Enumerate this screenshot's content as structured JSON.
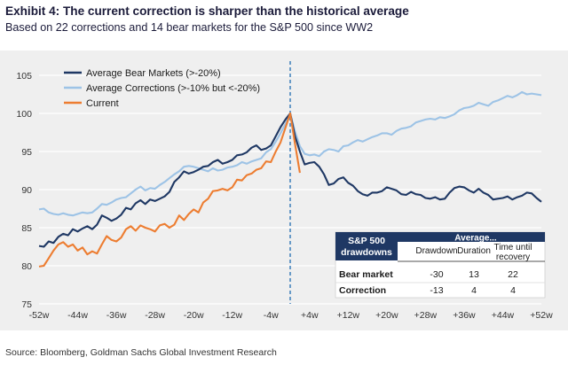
{
  "header": {
    "title": "Exhibit 4: The current correction is sharper than the historical average",
    "subtitle": "Based on 22 corrections and 14 bear markets for the S&P 500 since WW2"
  },
  "source": "Source: Bloomberg, Goldman Sachs Global Investment Research",
  "chart_data": {
    "type": "line",
    "x_tick_labels": [
      "-52w",
      "-44w",
      "-36w",
      "-28w",
      "-20w",
      "-12w",
      "-4w",
      "+4w",
      "+12w",
      "+20w",
      "+28w",
      "+36w",
      "+44w",
      "+52w"
    ],
    "x_tick_values": [
      -52,
      -44,
      -36,
      -28,
      -20,
      -12,
      -4,
      4,
      12,
      20,
      28,
      36,
      44,
      52
    ],
    "xlim": [
      -52,
      52
    ],
    "y_ticks": [
      75,
      80,
      85,
      90,
      95,
      100,
      105
    ],
    "ylim": [
      75,
      105
    ],
    "grid": "horizontal",
    "legend_position": "top-left",
    "peak_marker_x": 0,
    "series": [
      {
        "name": "Average Bear Markets (>-20%)",
        "color": "#1f3864",
        "points": [
          [
            -52,
            82.6
          ],
          [
            -51,
            82.5
          ],
          [
            -50,
            83.2
          ],
          [
            -49,
            83.0
          ],
          [
            -48,
            83.8
          ],
          [
            -47,
            84.2
          ],
          [
            -46,
            84.0
          ],
          [
            -45,
            84.8
          ],
          [
            -44,
            84.5
          ],
          [
            -43,
            84.9
          ],
          [
            -42,
            85.2
          ],
          [
            -41,
            84.8
          ],
          [
            -40,
            85.4
          ],
          [
            -39,
            86.6
          ],
          [
            -38,
            86.3
          ],
          [
            -37,
            85.9
          ],
          [
            -36,
            86.2
          ],
          [
            -35,
            86.7
          ],
          [
            -34,
            87.6
          ],
          [
            -33,
            87.4
          ],
          [
            -32,
            88.2
          ],
          [
            -31,
            88.6
          ],
          [
            -30,
            88.1
          ],
          [
            -29,
            88.7
          ],
          [
            -28,
            88.5
          ],
          [
            -27,
            88.8
          ],
          [
            -26,
            89.1
          ],
          [
            -25,
            89.7
          ],
          [
            -24,
            91.0
          ],
          [
            -23,
            91.6
          ],
          [
            -22,
            92.4
          ],
          [
            -21,
            92.1
          ],
          [
            -20,
            92.3
          ],
          [
            -19,
            92.6
          ],
          [
            -18,
            93.0
          ],
          [
            -17,
            93.1
          ],
          [
            -16,
            93.6
          ],
          [
            -15,
            93.9
          ],
          [
            -14,
            93.4
          ],
          [
            -13,
            93.6
          ],
          [
            -12,
            93.9
          ],
          [
            -11,
            94.5
          ],
          [
            -10,
            94.6
          ],
          [
            -9,
            94.9
          ],
          [
            -8,
            95.5
          ],
          [
            -7,
            95.8
          ],
          [
            -6,
            95.2
          ],
          [
            -5,
            95.4
          ],
          [
            -4,
            95.8
          ],
          [
            -3,
            97.0
          ],
          [
            -2,
            98.2
          ],
          [
            -1,
            99.2
          ],
          [
            0,
            100
          ],
          [
            1,
            97.0
          ],
          [
            2,
            95.0
          ],
          [
            3,
            93.3
          ],
          [
            4,
            93.5
          ],
          [
            5,
            93.6
          ],
          [
            6,
            93.0
          ],
          [
            7,
            92.0
          ],
          [
            8,
            90.6
          ],
          [
            9,
            90.8
          ],
          [
            10,
            91.4
          ],
          [
            11,
            91.6
          ],
          [
            12,
            90.9
          ],
          [
            13,
            90.5
          ],
          [
            14,
            89.8
          ],
          [
            15,
            89.4
          ],
          [
            16,
            89.2
          ],
          [
            17,
            89.6
          ],
          [
            18,
            89.6
          ],
          [
            19,
            89.8
          ],
          [
            20,
            90.3
          ],
          [
            21,
            90.1
          ],
          [
            22,
            89.9
          ],
          [
            23,
            89.4
          ],
          [
            24,
            89.3
          ],
          [
            25,
            89.7
          ],
          [
            26,
            89.4
          ],
          [
            27,
            89.3
          ],
          [
            28,
            88.9
          ],
          [
            29,
            88.8
          ],
          [
            30,
            89.0
          ],
          [
            31,
            88.7
          ],
          [
            32,
            88.8
          ],
          [
            33,
            89.6
          ],
          [
            34,
            90.2
          ],
          [
            35,
            90.4
          ],
          [
            36,
            90.3
          ],
          [
            37,
            89.9
          ],
          [
            38,
            89.6
          ],
          [
            39,
            90.1
          ],
          [
            40,
            89.6
          ],
          [
            41,
            89.3
          ],
          [
            42,
            88.7
          ],
          [
            43,
            88.8
          ],
          [
            44,
            88.9
          ],
          [
            45,
            89.1
          ],
          [
            46,
            88.7
          ],
          [
            47,
            89.0
          ],
          [
            48,
            89.2
          ],
          [
            49,
            89.6
          ],
          [
            50,
            89.5
          ],
          [
            51,
            88.9
          ],
          [
            52,
            88.4
          ]
        ]
      },
      {
        "name": "Average Corrections (>-10% but <-20%)",
        "color": "#9dc3e6",
        "points": [
          [
            -52,
            87.4
          ],
          [
            -51,
            87.5
          ],
          [
            -50,
            87.0
          ],
          [
            -49,
            86.8
          ],
          [
            -48,
            86.7
          ],
          [
            -47,
            86.9
          ],
          [
            -46,
            86.7
          ],
          [
            -45,
            86.6
          ],
          [
            -44,
            86.8
          ],
          [
            -43,
            87.0
          ],
          [
            -42,
            86.9
          ],
          [
            -41,
            87.0
          ],
          [
            -40,
            87.5
          ],
          [
            -39,
            88.1
          ],
          [
            -38,
            88.0
          ],
          [
            -37,
            88.3
          ],
          [
            -36,
            88.7
          ],
          [
            -35,
            88.9
          ],
          [
            -34,
            89.0
          ],
          [
            -33,
            89.5
          ],
          [
            -32,
            90.0
          ],
          [
            -31,
            90.4
          ],
          [
            -30,
            89.9
          ],
          [
            -29,
            90.2
          ],
          [
            -28,
            90.1
          ],
          [
            -27,
            90.6
          ],
          [
            -26,
            91.0
          ],
          [
            -25,
            91.5
          ],
          [
            -24,
            92.0
          ],
          [
            -23,
            92.4
          ],
          [
            -22,
            93.0
          ],
          [
            -21,
            93.1
          ],
          [
            -20,
            93.0
          ],
          [
            -19,
            92.8
          ],
          [
            -18,
            92.6
          ],
          [
            -17,
            92.4
          ],
          [
            -16,
            92.8
          ],
          [
            -15,
            92.5
          ],
          [
            -14,
            92.6
          ],
          [
            -13,
            92.9
          ],
          [
            -12,
            93.0
          ],
          [
            -11,
            93.2
          ],
          [
            -10,
            93.6
          ],
          [
            -9,
            93.4
          ],
          [
            -8,
            93.7
          ],
          [
            -7,
            93.9
          ],
          [
            -6,
            94.1
          ],
          [
            -5,
            94.9
          ],
          [
            -4,
            95.3
          ],
          [
            -3,
            96.3
          ],
          [
            -2,
            97.4
          ],
          [
            -1,
            98.6
          ],
          [
            0,
            100
          ],
          [
            1,
            97.6
          ],
          [
            2,
            95.7
          ],
          [
            3,
            94.7
          ],
          [
            4,
            94.5
          ],
          [
            5,
            94.6
          ],
          [
            6,
            94.4
          ],
          [
            7,
            95.0
          ],
          [
            8,
            95.3
          ],
          [
            9,
            95.2
          ],
          [
            10,
            95.0
          ],
          [
            11,
            95.7
          ],
          [
            12,
            95.8
          ],
          [
            13,
            96.2
          ],
          [
            14,
            96.5
          ],
          [
            15,
            96.3
          ],
          [
            16,
            96.6
          ],
          [
            17,
            96.9
          ],
          [
            18,
            97.1
          ],
          [
            19,
            97.4
          ],
          [
            20,
            97.4
          ],
          [
            21,
            97.2
          ],
          [
            22,
            97.7
          ],
          [
            23,
            98.0
          ],
          [
            24,
            98.1
          ],
          [
            25,
            98.3
          ],
          [
            26,
            98.8
          ],
          [
            27,
            99.0
          ],
          [
            28,
            99.2
          ],
          [
            29,
            99.3
          ],
          [
            30,
            99.2
          ],
          [
            31,
            99.5
          ],
          [
            32,
            99.4
          ],
          [
            33,
            99.6
          ],
          [
            34,
            99.9
          ],
          [
            35,
            100.4
          ],
          [
            36,
            100.7
          ],
          [
            37,
            100.8
          ],
          [
            38,
            101.0
          ],
          [
            39,
            101.4
          ],
          [
            40,
            101.2
          ],
          [
            41,
            101.0
          ],
          [
            42,
            101.5
          ],
          [
            43,
            101.7
          ],
          [
            44,
            102.0
          ],
          [
            45,
            102.3
          ],
          [
            46,
            102.1
          ],
          [
            47,
            102.4
          ],
          [
            48,
            102.8
          ],
          [
            49,
            102.5
          ],
          [
            50,
            102.6
          ],
          [
            51,
            102.5
          ],
          [
            52,
            102.4
          ]
        ]
      },
      {
        "name": "Current",
        "color": "#ed7d31",
        "points": [
          [
            -52,
            79.9
          ],
          [
            -51,
            80.0
          ],
          [
            -50,
            81.0
          ],
          [
            -49,
            82.0
          ],
          [
            -48,
            82.8
          ],
          [
            -47,
            83.1
          ],
          [
            -46,
            82.5
          ],
          [
            -45,
            82.8
          ],
          [
            -44,
            82.0
          ],
          [
            -43,
            82.4
          ],
          [
            -42,
            81.5
          ],
          [
            -41,
            81.9
          ],
          [
            -40,
            81.6
          ],
          [
            -39,
            82.8
          ],
          [
            -38,
            83.9
          ],
          [
            -37,
            83.4
          ],
          [
            -36,
            83.2
          ],
          [
            -35,
            83.7
          ],
          [
            -34,
            84.8
          ],
          [
            -33,
            85.2
          ],
          [
            -32,
            84.6
          ],
          [
            -31,
            85.3
          ],
          [
            -30,
            85.0
          ],
          [
            -29,
            84.8
          ],
          [
            -28,
            84.5
          ],
          [
            -27,
            85.3
          ],
          [
            -26,
            85.5
          ],
          [
            -25,
            85.0
          ],
          [
            -24,
            85.4
          ],
          [
            -23,
            86.6
          ],
          [
            -22,
            86.0
          ],
          [
            -21,
            86.8
          ],
          [
            -20,
            87.4
          ],
          [
            -19,
            87.0
          ],
          [
            -18,
            88.3
          ],
          [
            -17,
            88.8
          ],
          [
            -16,
            89.8
          ],
          [
            -15,
            89.9
          ],
          [
            -14,
            90.1
          ],
          [
            -13,
            89.9
          ],
          [
            -12,
            90.3
          ],
          [
            -11,
            91.3
          ],
          [
            -10,
            91.2
          ],
          [
            -9,
            91.9
          ],
          [
            -8,
            92.1
          ],
          [
            -7,
            92.6
          ],
          [
            -6,
            92.8
          ],
          [
            -5,
            93.7
          ],
          [
            -4,
            93.6
          ],
          [
            -3,
            95.0
          ],
          [
            -2,
            96.2
          ],
          [
            -1,
            98.1
          ],
          [
            0,
            100
          ],
          [
            1,
            96.0
          ],
          [
            2,
            92.2
          ]
        ]
      }
    ],
    "table": {
      "corner_title_line1": "S&P 500",
      "corner_title_line2": "drawdowns",
      "group_header": "Average...",
      "columns": [
        "Drawdown",
        "Duration",
        "Time until recovery"
      ],
      "rows": [
        {
          "label": "Bear market",
          "values": [
            "-30",
            "13",
            "22"
          ]
        },
        {
          "label": "Correction",
          "values": [
            "-13",
            "4",
            "4"
          ]
        }
      ],
      "header_color": "#1f3864"
    }
  }
}
